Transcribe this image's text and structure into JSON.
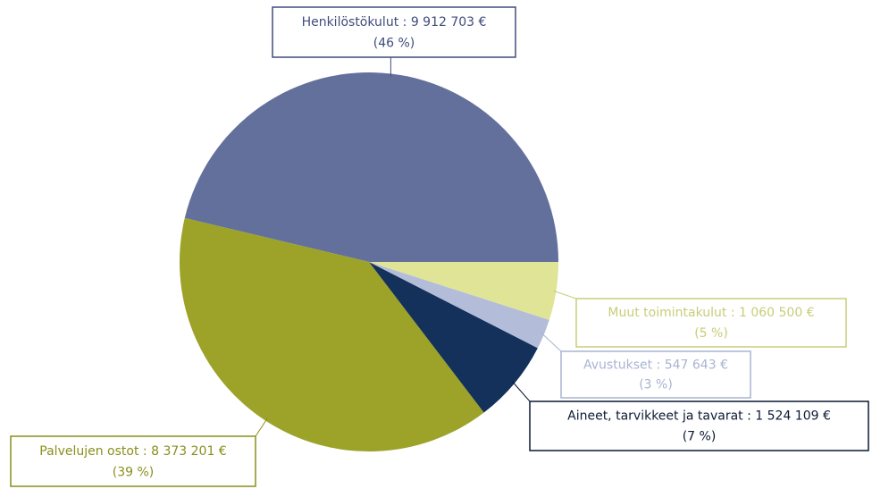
{
  "chart_data": {
    "type": "pie",
    "categories": [
      "Henkilöstökulut",
      "Palvelujen ostot",
      "Aineet, tarvikkeet ja tavarat",
      "Avustukset",
      "Muut toimintakulut"
    ],
    "values": [
      9912703,
      8373201,
      1524109,
      547643,
      1060500
    ],
    "value_labels": [
      "9 912 703 €",
      "8 373 201 €",
      "1 524 109 €",
      "547 643 €",
      "1 060 500 €"
    ],
    "label_separator": " : ",
    "percents": [
      46,
      39,
      7,
      3,
      5
    ],
    "percent_labels": [
      "(46 %)",
      "(39 %)",
      "(7 %)",
      "(3 %)",
      "(5 %)"
    ],
    "colors": [
      "#63709b",
      "#9da228",
      "#13315a",
      "#b3bcd8",
      "#dfe497"
    ],
    "label_colors": [
      "#3f4d7c",
      "#8a8f1c",
      "#0b1a33",
      "#aab3d2",
      "#c8cd78"
    ]
  }
}
